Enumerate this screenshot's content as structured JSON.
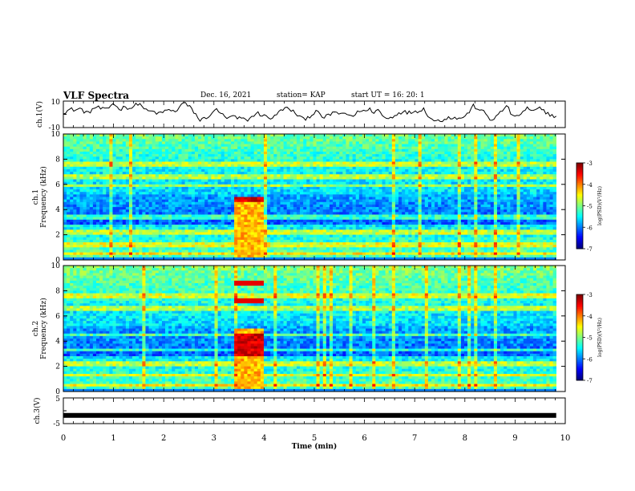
{
  "header": {
    "title": "VLF Spectra",
    "date": "Dec. 16, 2021",
    "station": "station= KAP",
    "start": "start  UT =   16: 20: 1"
  },
  "chart_data": [
    {
      "type": "line",
      "name": "ch1-waveform",
      "ylabel": "ch.1(V)",
      "ylim": [
        -10,
        10
      ],
      "yticks": [
        "10",
        "-10"
      ],
      "xlim": [
        0,
        10
      ],
      "x_end": 9.82,
      "color": "#000000",
      "trace": [
        1.5,
        2.8,
        4.0,
        3.2,
        4.5,
        2.0,
        1.0,
        3.8,
        5.5,
        4.2,
        3.5,
        5.0,
        8.6,
        5.2,
        4.0,
        6.0,
        4.6,
        5.8,
        8.0,
        6.5,
        3.0,
        2.2,
        1.8,
        0.5,
        1.4,
        3.6,
        2.4,
        2.0,
        5.5,
        8.8,
        6.5,
        4.0,
        0.0,
        -4.8,
        -3.0,
        -1.5,
        0.5,
        4.2,
        1.0,
        -2.5,
        -3.0,
        -1.0,
        -3.8,
        -2.6,
        -4.5,
        -3.2,
        -0.6,
        1.0,
        -0.8,
        -1.6,
        -2.8,
        -1.5,
        1.5,
        4.0,
        4.6,
        3.0,
        0.8,
        -1.5,
        -3.8,
        -2.0,
        -0.5,
        3.0,
        -1.0,
        -2.5,
        -0.8,
        1.2,
        1.8,
        -0.4,
        0.5,
        -0.5,
        -1.2,
        1.5,
        3.2,
        2.2,
        4.0,
        1.6,
        3.5,
        -0.8,
        -3.2,
        -2.5,
        -0.5,
        1.0,
        2.6,
        0.8,
        1.6,
        2.4,
        3.0,
        4.2,
        -0.5,
        -3.8,
        -5.2,
        -4.5,
        -4.0,
        -1.5,
        -2.8,
        -3.2,
        -2.5,
        -1.8,
        2.0,
        6.5,
        4.5,
        2.5,
        0.5,
        -4.2,
        -3.0,
        -0.5,
        2.8,
        6.8,
        1.0,
        -2.5,
        -0.5,
        2.0,
        4.8,
        2.2,
        3.0,
        4.5,
        2.8,
        1.0,
        -1.0,
        -1.5
      ]
    },
    {
      "type": "heatmap",
      "name": "ch1-spectrogram",
      "ylabel": "ch.1\nFrequency (kHz)",
      "xlim": [
        0,
        10
      ],
      "ylim": [
        0,
        10
      ],
      "data_x_end": 9.82,
      "event": {
        "x_start": 3.38,
        "x_end": 3.98,
        "enhanced_band_khz": [
          0.3,
          5.0
        ],
        "strong_band_khz": [
          4.6,
          5.0
        ]
      },
      "yticks": [
        "0",
        "2",
        "4",
        "6",
        "8",
        "10"
      ],
      "colorbar": {
        "label": "log(PSD)(V²/Hz)",
        "ticks": [
          "-3",
          "-4",
          "-5",
          "-6",
          "-7"
        ],
        "range": [
          -7,
          -3
        ]
      }
    },
    {
      "type": "heatmap",
      "name": "ch2-spectrogram",
      "ylabel": "ch.2\nFrequency (kHz)",
      "xlim": [
        0,
        10
      ],
      "ylim": [
        0,
        10
      ],
      "data_x_end": 9.82,
      "event": {
        "x_start": 3.38,
        "x_end": 3.98,
        "enhanced_band_khz": [
          0.3,
          5.0
        ],
        "strong_band_khz": [
          2.8,
          4.5
        ],
        "extra_lines_khz": [
          7.2,
          8.6
        ]
      },
      "yticks": [
        "0",
        "2",
        "4",
        "6",
        "8",
        "10"
      ],
      "colorbar": {
        "label": "log(PSD)(V²/Hz)",
        "ticks": [
          "-3",
          "-4",
          "-5",
          "-6",
          "-7"
        ],
        "range": [
          -7,
          -3
        ]
      }
    },
    {
      "type": "line",
      "name": "ch3-trace",
      "ylabel": "ch.3(V)",
      "ylim": [
        -5,
        5
      ],
      "yticks": [
        "5",
        "-5"
      ],
      "xlim": [
        0,
        10
      ],
      "x_end": 9.82,
      "constant_value": -1.8,
      "color": "#000000"
    }
  ],
  "xaxis": {
    "label": "Time  (min)",
    "ticks": [
      "0",
      "1",
      "2",
      "3",
      "4",
      "5",
      "6",
      "7",
      "8",
      "9",
      "10"
    ]
  }
}
